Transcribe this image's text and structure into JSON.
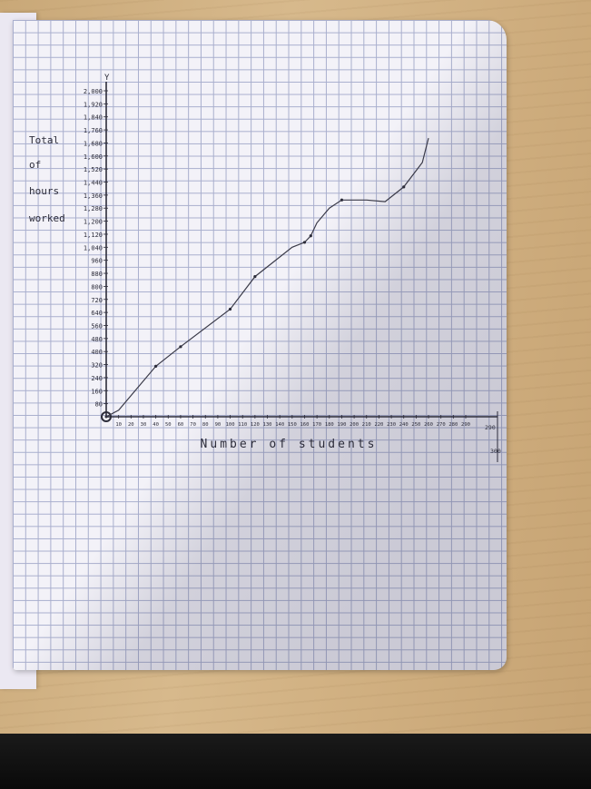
{
  "chart_data": {
    "type": "line",
    "xlabel": "Number of students",
    "ylabel_lines": [
      "Total",
      "of",
      "hours",
      "worked"
    ],
    "y_axis_letter": "Y",
    "xlim": [
      0,
      300
    ],
    "ylim": [
      0,
      2000
    ],
    "x_ticks": [
      "10",
      "20",
      "30",
      "40",
      "50",
      "60",
      "70",
      "80",
      "90",
      "100",
      "110",
      "120",
      "130",
      "140",
      "150",
      "160",
      "170",
      "180",
      "190",
      "200",
      "210",
      "220",
      "230",
      "240",
      "250",
      "260",
      "270",
      "280",
      "290"
    ],
    "y_ticks": [
      "80",
      "160",
      "240",
      "320",
      "400",
      "480",
      "560",
      "640",
      "720",
      "800",
      "880",
      "960",
      "1,040",
      "1,120",
      "1,200",
      "1,280",
      "1,360",
      "1,440",
      "1,520",
      "1,600",
      "1,680",
      "1,760",
      "1,840",
      "1,920",
      "2,000"
    ],
    "extra_ticks": [
      "290",
      "300"
    ],
    "series": [
      {
        "x": [
          0,
          10,
          40,
          60,
          100,
          120,
          150,
          160,
          165,
          170,
          180,
          190,
          210,
          225,
          240,
          255,
          260
        ],
        "y": [
          0,
          40,
          310,
          430,
          660,
          860,
          1040,
          1070,
          1110,
          1190,
          1280,
          1330,
          1330,
          1320,
          1410,
          1560,
          1710
        ]
      }
    ],
    "marked_points_x": [
      40,
      60,
      100,
      120,
      160,
      165,
      190,
      240
    ],
    "grid": true,
    "origin_marker": "circle"
  }
}
